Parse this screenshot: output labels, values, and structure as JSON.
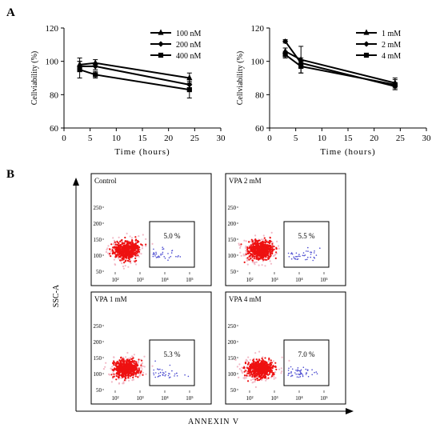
{
  "panel_labels": {
    "a": "A",
    "b": "B"
  },
  "colors": {
    "line": "#000000",
    "scatter_main": "#ee1111",
    "scatter_pink": "#f2b8c6",
    "scatter_blue": "#4a4ad0"
  },
  "chart_data": [
    {
      "type": "line",
      "title": "",
      "xlabel": "Time (hours)",
      "ylabel": "Cellviability (%)",
      "xlim": [
        0,
        30
      ],
      "ylim": [
        60,
        120
      ],
      "xticks": [
        0,
        5,
        10,
        15,
        20,
        25,
        30
      ],
      "yticks": [
        60,
        80,
        100,
        120
      ],
      "legend_position": "top-right",
      "series": [
        {
          "name": "100 nM",
          "marker": "triangle",
          "x": [
            3,
            6,
            24
          ],
          "y": [
            98,
            99,
            90
          ],
          "err": [
            4,
            2,
            3
          ]
        },
        {
          "name": "200 nM",
          "marker": "diamond",
          "x": [
            3,
            6,
            24
          ],
          "y": [
            97,
            97,
            86
          ],
          "err": [
            3,
            2,
            3
          ]
        },
        {
          "name": "400 nM",
          "marker": "square",
          "x": [
            3,
            6,
            24
          ],
          "y": [
            95,
            92,
            83
          ],
          "err": [
            5,
            2,
            5
          ]
        }
      ]
    },
    {
      "type": "line",
      "title": "",
      "xlabel": "Time (hours)",
      "ylabel": "Cellviability (%)",
      "xlim": [
        0,
        30
      ],
      "ylim": [
        60,
        120
      ],
      "xticks": [
        0,
        5,
        10,
        15,
        20,
        25,
        30
      ],
      "yticks": [
        60,
        80,
        100,
        120
      ],
      "legend_position": "top-right",
      "series": [
        {
          "name": "1 mM",
          "marker": "triangle",
          "x": [
            3,
            6,
            24
          ],
          "y": [
            106,
            101,
            87
          ],
          "err": [
            2,
            8,
            3
          ]
        },
        {
          "name": "2 mM",
          "marker": "diamond",
          "x": [
            3,
            6,
            24
          ],
          "y": [
            112,
            99,
            85
          ],
          "err": [
            1,
            3,
            2
          ]
        },
        {
          "name": "4 mM",
          "marker": "square",
          "x": [
            3,
            6,
            24
          ],
          "y": [
            104,
            97,
            86
          ],
          "err": [
            2,
            4,
            3
          ]
        }
      ]
    },
    {
      "type": "scatter",
      "xlabel": "ANNEXIN V",
      "ylabel": "SSC-A",
      "x_tick_labels": [
        "10²",
        "10³",
        "10⁴",
        "10⁵"
      ],
      "y_tick_labels": [
        "50",
        "100",
        "150",
        "200",
        "250"
      ],
      "panels": [
        {
          "label": "Control",
          "gate_percent": "5.0 %",
          "apoptotic_fraction": 0.05
        },
        {
          "label": "VPA 2 mM",
          "gate_percent": "5.5 %",
          "apoptotic_fraction": 0.055
        },
        {
          "label": "VPA 1 mM",
          "gate_percent": "5.3 %",
          "apoptotic_fraction": 0.053
        },
        {
          "label": "VPA 4 mM",
          "gate_percent": "7.0 %",
          "apoptotic_fraction": 0.07
        }
      ]
    }
  ]
}
